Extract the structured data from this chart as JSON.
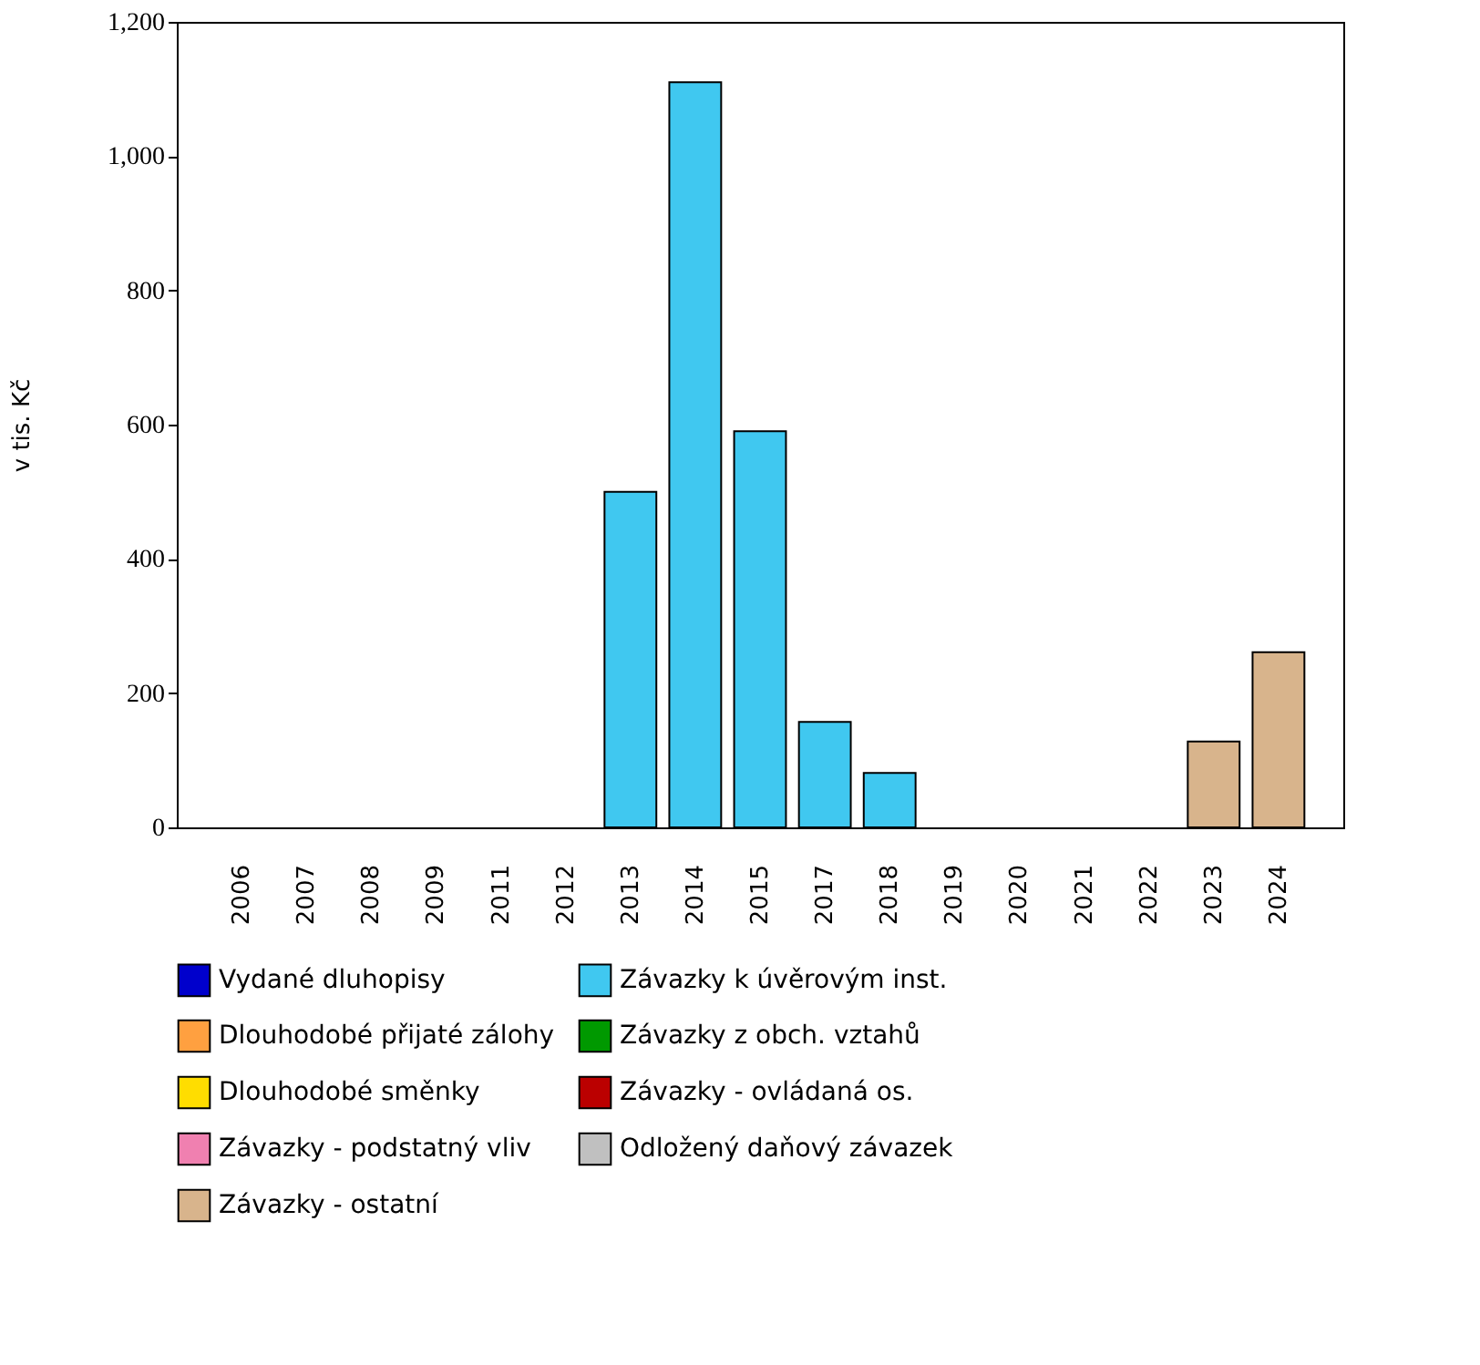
{
  "chart_data": {
    "type": "bar",
    "ylabel": "v tis. Kč",
    "categories": [
      "2006",
      "2007",
      "2008",
      "2009",
      "2011",
      "2012",
      "2013",
      "2014",
      "2015",
      "2017",
      "2018",
      "2019",
      "2020",
      "2021",
      "2022",
      "2023",
      "2024"
    ],
    "ylim": [
      0,
      1200
    ],
    "yticks": [
      0,
      {
        "value": 200,
        "label": "200"
      },
      {
        "value": 400,
        "label": "400"
      },
      {
        "value": 600,
        "label": "600"
      },
      {
        "value": 800,
        "label": "800"
      },
      {
        "value": 1000,
        "label": "1,000"
      },
      {
        "value": 1200,
        "label": "1,200"
      }
    ],
    "grid": false,
    "legend": "bottom",
    "series": [
      {
        "name": "Vydané dluhopisy",
        "color": "#0000cc",
        "values": [
          null,
          null,
          null,
          null,
          null,
          null,
          null,
          null,
          null,
          null,
          null,
          null,
          null,
          null,
          null,
          null,
          null
        ]
      },
      {
        "name": "Závazky k úvěrovým inst.",
        "color": "#40c8f0",
        "values": [
          null,
          null,
          null,
          null,
          null,
          null,
          500,
          1110,
          590,
          157,
          81,
          null,
          null,
          null,
          null,
          null,
          null
        ]
      },
      {
        "name": "Dlouhodobé přijaté zálohy",
        "color": "#ffa040",
        "values": [
          null,
          null,
          null,
          null,
          null,
          null,
          null,
          null,
          null,
          null,
          null,
          null,
          null,
          null,
          null,
          null,
          null
        ]
      },
      {
        "name": "Závazky z obch. vztahů",
        "color": "#009900",
        "values": [
          null,
          null,
          null,
          null,
          null,
          null,
          null,
          null,
          null,
          null,
          null,
          null,
          null,
          null,
          null,
          null,
          null
        ]
      },
      {
        "name": "Dlouhodobé směnky",
        "color": "#ffdd00",
        "values": [
          null,
          null,
          null,
          null,
          null,
          null,
          null,
          null,
          null,
          null,
          null,
          null,
          null,
          null,
          null,
          null,
          null
        ]
      },
      {
        "name": "Závazky - ovládaná os.",
        "color": "#bb0000",
        "values": [
          null,
          null,
          null,
          null,
          null,
          null,
          null,
          null,
          null,
          null,
          null,
          null,
          null,
          null,
          null,
          null,
          null
        ]
      },
      {
        "name": "Závazky - podstatný vliv",
        "color": "#f080b0",
        "values": [
          null,
          null,
          null,
          null,
          null,
          null,
          null,
          null,
          null,
          null,
          null,
          null,
          null,
          null,
          null,
          null,
          null
        ]
      },
      {
        "name": "Odložený daňový závazek",
        "color": "#c0c0c0",
        "values": [
          null,
          null,
          null,
          null,
          null,
          null,
          null,
          null,
          null,
          null,
          null,
          null,
          null,
          null,
          null,
          null,
          null
        ]
      },
      {
        "name": "Závazky - ostatní",
        "color": "#d8b48c",
        "values": [
          null,
          null,
          null,
          null,
          null,
          null,
          null,
          null,
          null,
          null,
          null,
          null,
          null,
          null,
          null,
          128,
          261
        ]
      }
    ]
  }
}
